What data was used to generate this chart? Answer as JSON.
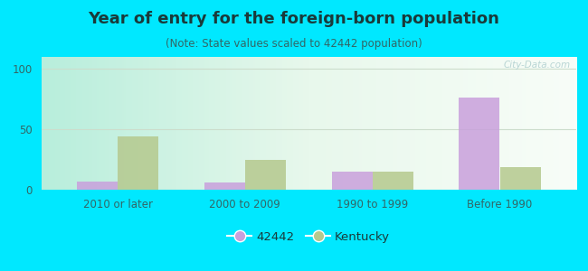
{
  "title": "Year of entry for the foreign-born population",
  "subtitle": "(Note: State values scaled to 42442 population)",
  "categories": [
    "2010 or later",
    "2000 to 2009",
    "1990 to 1999",
    "Before 1990"
  ],
  "values_42442": [
    7,
    6,
    15,
    76
  ],
  "values_kentucky": [
    44,
    25,
    15,
    19
  ],
  "color_42442": "#c9a0dc",
  "color_kentucky": "#b5c98e",
  "background_outer": "#00e8ff",
  "background_inner_left": "#aeeede",
  "background_inner_right": "#f0faf0",
  "ylim": [
    0,
    110
  ],
  "yticks": [
    0,
    50,
    100
  ],
  "bar_width": 0.32,
  "legend_label_42442": "42442",
  "legend_label_kentucky": "Kentucky",
  "title_fontsize": 13,
  "subtitle_fontsize": 8.5,
  "tick_fontsize": 8.5,
  "legend_fontsize": 9.5,
  "title_color": "#1a3a3a",
  "subtitle_color": "#336666",
  "tick_color": "#336666",
  "watermark": "City-Data.com",
  "grid_color": "#ccddcc"
}
